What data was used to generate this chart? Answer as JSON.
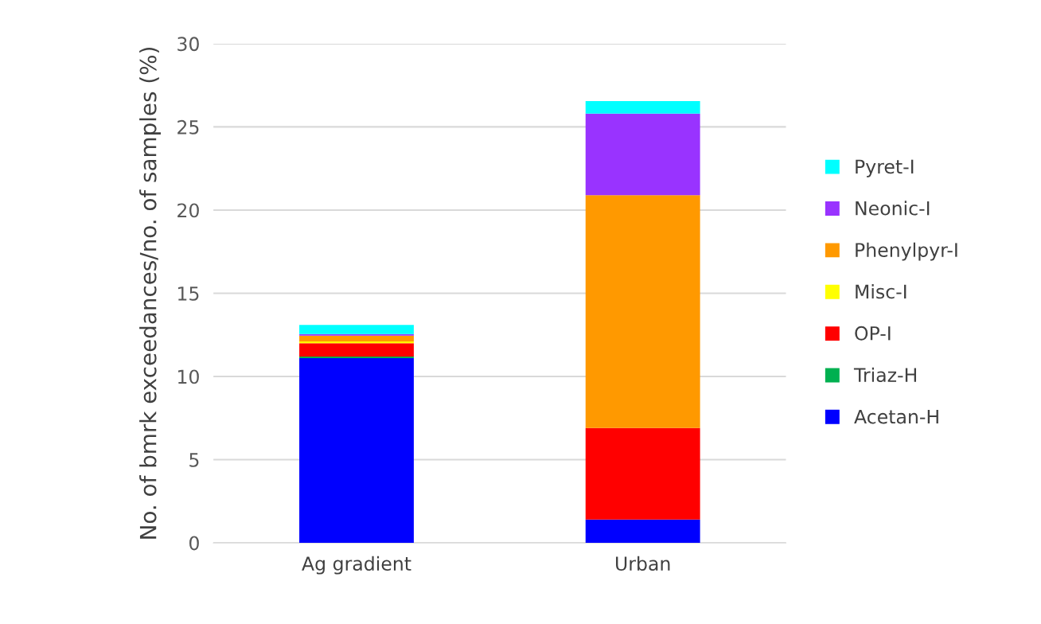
{
  "chart_data": {
    "type": "bar",
    "stacked": true,
    "ylabel": "No. of bmrk exceedances/no. of samples (%)",
    "categories": [
      "Ag gradient",
      "Urban"
    ],
    "series": [
      {
        "name": "Acetan-H",
        "color": "#0000ff",
        "values": [
          11.1,
          1.4
        ]
      },
      {
        "name": "Triaz-H",
        "color": "#00b050",
        "values": [
          0.1,
          0
        ]
      },
      {
        "name": "OP-I",
        "color": "#ff0000",
        "values": [
          0.8,
          5.5
        ]
      },
      {
        "name": "Misc-I",
        "color": "#ffff00",
        "values": [
          0.1,
          0
        ]
      },
      {
        "name": "Phenylpyr-I",
        "color": "#ff9900",
        "values": [
          0.35,
          14.0
        ]
      },
      {
        "name": "Neonic-I",
        "color": "#9933ff",
        "values": [
          0.1,
          4.9
        ]
      },
      {
        "name": "Pyret-I",
        "color": "#00ffff",
        "values": [
          0.55,
          0.75
        ]
      }
    ],
    "ylim": [
      0,
      30
    ],
    "yticks": [
      0,
      5,
      10,
      15,
      20,
      25,
      30
    ],
    "grid": "y",
    "legend": "right"
  }
}
